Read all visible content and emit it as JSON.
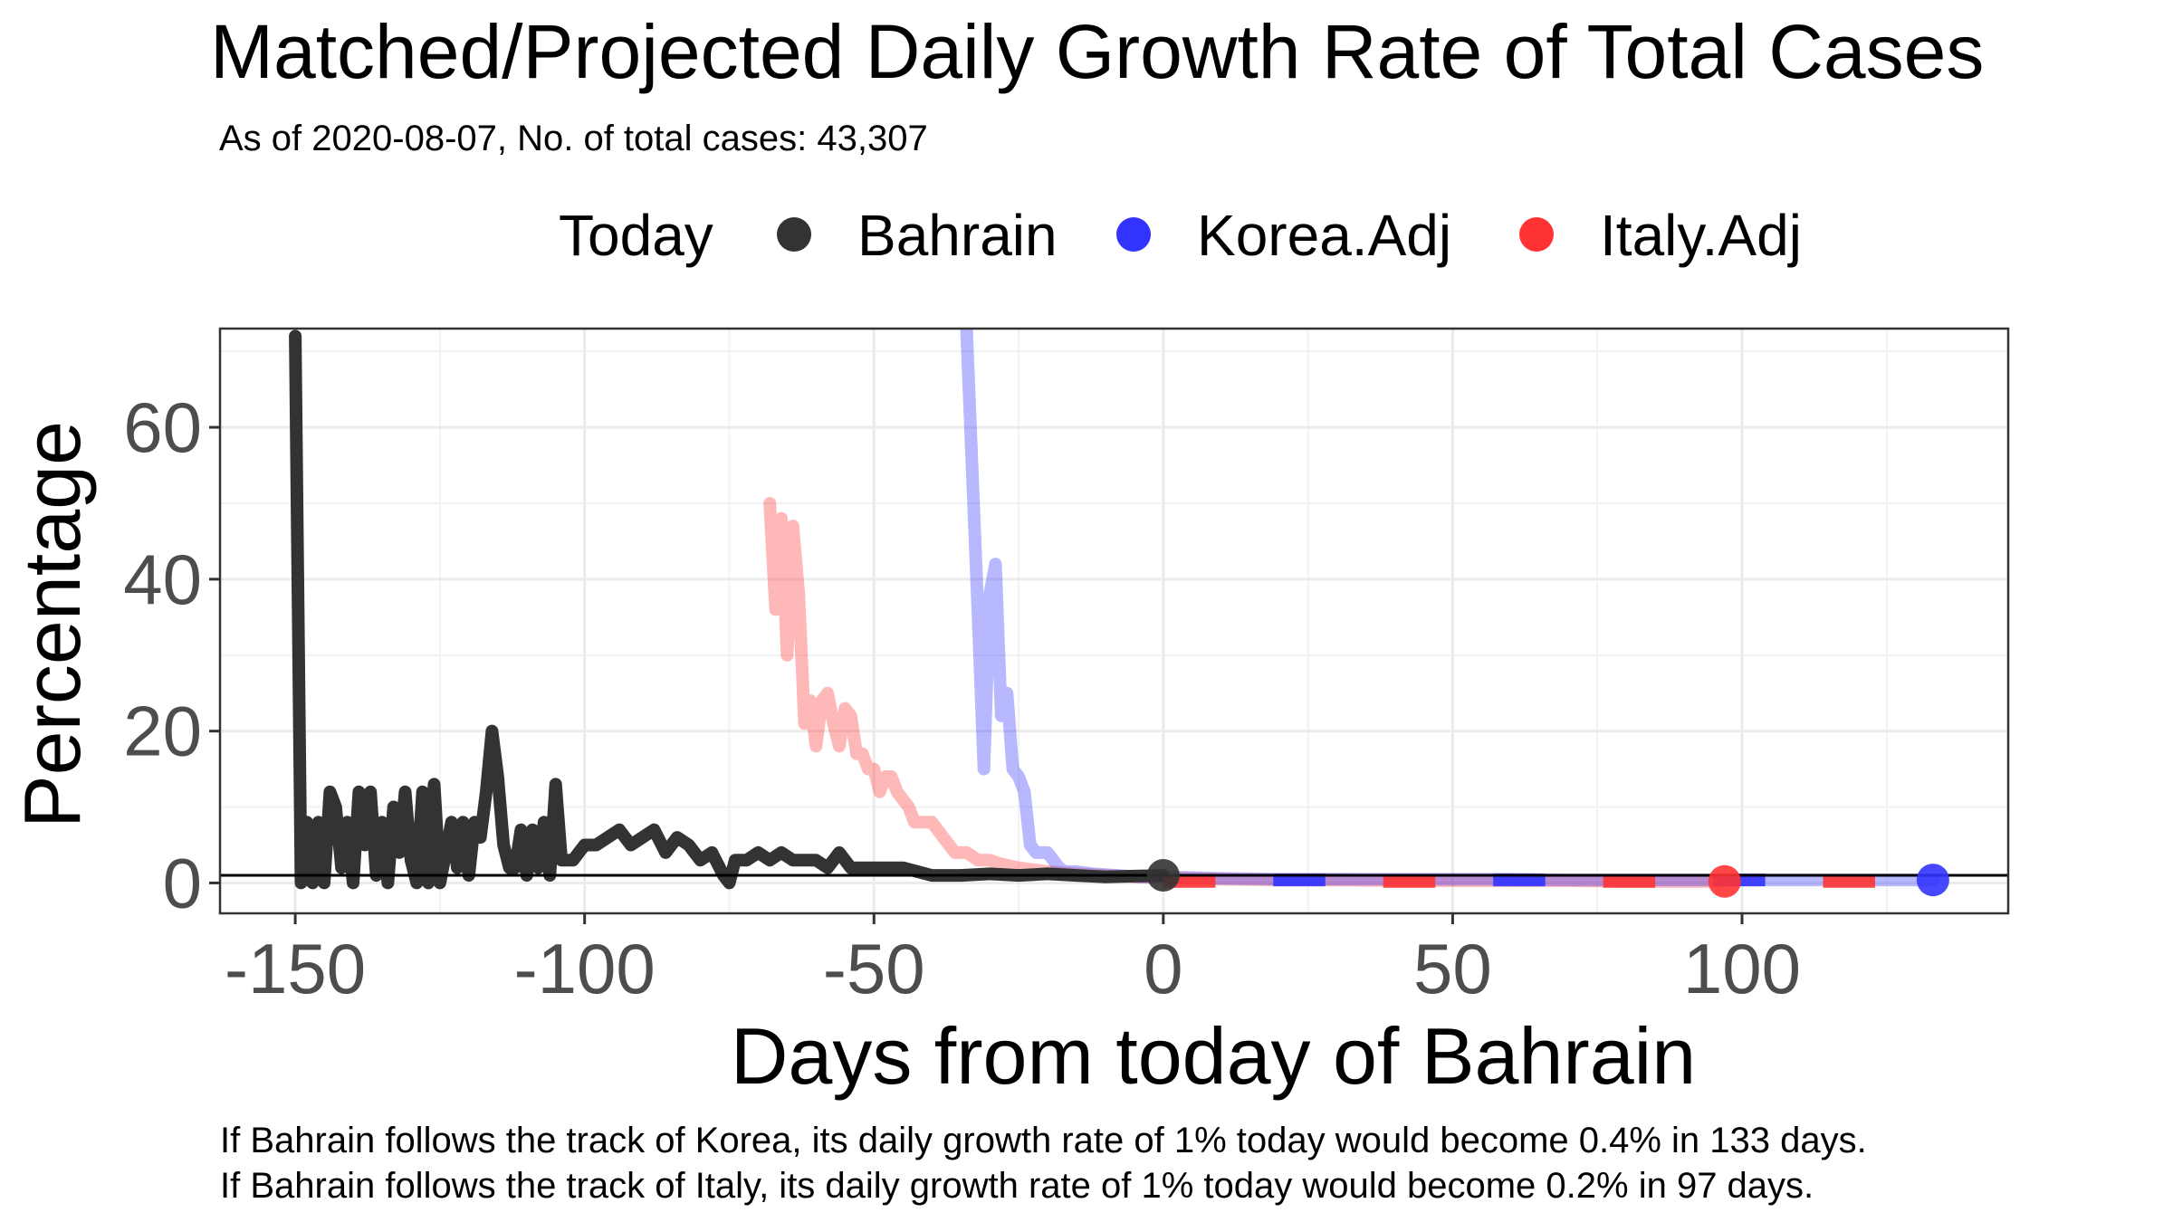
{
  "chart_data": {
    "type": "line",
    "title": "Matched/Projected Daily Growth Rate of Total Cases",
    "subtitle": "As of 2020-08-07, No. of total cases: 43,307",
    "xlabel": "Days from today of Bahrain",
    "ylabel": "Percentage",
    "xlim": [
      -163,
      146
    ],
    "ylim": [
      -4,
      73
    ],
    "x_ticks": [
      -150,
      -100,
      -50,
      0,
      50,
      100
    ],
    "x_tick_labels": [
      "-150",
      "-100",
      "-50",
      "0",
      "50",
      "100"
    ],
    "y_ticks": [
      0,
      20,
      40,
      60
    ],
    "y_tick_labels": [
      "0",
      "20",
      "40",
      "60"
    ],
    "hline_y": 1,
    "grid": true,
    "legend": {
      "position": "top",
      "title": "Today",
      "entries": [
        "Bahrain",
        "Korea.Adj",
        "Italy.Adj"
      ]
    },
    "colors": {
      "Bahrain": "#333333",
      "Korea.Adj": "#3333ff",
      "Italy.Adj": "#ff3333"
    },
    "series": [
      {
        "name": "Bahrain",
        "x": [
          -150,
          -149,
          -148,
          -147,
          -146,
          -145,
          -144,
          -143,
          -142,
          -141,
          -140,
          -139,
          -138,
          -137,
          -136,
          -135,
          -134,
          -133,
          -132,
          -131,
          -130,
          -129,
          -128,
          -127,
          -126,
          -125,
          -124,
          -123,
          -122,
          -121,
          -120,
          -119,
          -118,
          -117,
          -116,
          -115,
          -114,
          -113,
          -112,
          -111,
          -110,
          -109,
          -108,
          -107,
          -106,
          -105,
          -104,
          -103,
          -102,
          -101,
          -100,
          -98,
          -96,
          -94,
          -92,
          -90,
          -88,
          -86,
          -84,
          -82,
          -80,
          -78,
          -76,
          -75,
          -74,
          -72,
          -70,
          -68,
          -66,
          -64,
          -62,
          -60,
          -58,
          -56,
          -54,
          -52,
          -50,
          -45,
          -40,
          -35,
          -30,
          -25,
          -20,
          -15,
          -10,
          -5,
          0
        ],
        "values": [
          72,
          0,
          8,
          0,
          8,
          0,
          12,
          10,
          2,
          8,
          0,
          12,
          5,
          12,
          1,
          8,
          0,
          10,
          4,
          12,
          3,
          0,
          12,
          0,
          13,
          0,
          4,
          8,
          2,
          8,
          1,
          8,
          6,
          12,
          20,
          14,
          5,
          2,
          2,
          7,
          1,
          7,
          2,
          8,
          1,
          13,
          3,
          3,
          3,
          4,
          5,
          5,
          6,
          7,
          5,
          6,
          7,
          4,
          6,
          5,
          3,
          4,
          1,
          0,
          3,
          3,
          4,
          3,
          4,
          3,
          3,
          3,
          2,
          4,
          2,
          2,
          2,
          2,
          1,
          1,
          1.2,
          1,
          1.2,
          1,
          0.8,
          0.9,
          1.0
        ]
      },
      {
        "name": "Korea.Adj",
        "x": [
          -34,
          -33,
          -32,
          -31,
          -30,
          -29,
          -28,
          -27,
          -26,
          -25,
          -24,
          -23,
          -22,
          -21,
          -20,
          -19,
          -18,
          -17,
          -15,
          -12,
          -8,
          -4,
          0,
          10,
          20,
          30,
          40,
          50,
          60,
          70,
          80,
          90,
          100,
          110,
          120,
          133
        ],
        "values": [
          73,
          54,
          35,
          15,
          38,
          42,
          22,
          25,
          15,
          14,
          12,
          5,
          4,
          4,
          4,
          3,
          2,
          1.5,
          1.5,
          1.2,
          1,
          0.8,
          0.8,
          0.6,
          0.5,
          0.5,
          0.5,
          0.5,
          0.5,
          0.4,
          0.4,
          0.4,
          0.4,
          0.4,
          0.4,
          0.4
        ]
      },
      {
        "name": "Italy.Adj",
        "x": [
          -68,
          -67,
          -66,
          -65,
          -64,
          -63,
          -62,
          -61,
          -60,
          -59,
          -58,
          -57,
          -56,
          -55,
          -54,
          -53,
          -52,
          -51,
          -50,
          -49,
          -48,
          -47,
          -46,
          -45,
          -44,
          -43,
          -42,
          -40,
          -38,
          -36,
          -34,
          -32,
          -30,
          -28,
          -25,
          -20,
          -15,
          -10,
          -5,
          0,
          10,
          20,
          30,
          40,
          50,
          60,
          70,
          80,
          90,
          97
        ],
        "values": [
          50,
          36,
          48,
          30,
          47,
          38,
          21,
          24,
          18,
          24,
          25,
          21,
          18,
          23,
          22,
          17,
          17,
          15,
          15,
          12,
          14,
          14,
          12,
          11,
          10,
          8,
          8,
          8,
          6,
          4,
          4,
          3,
          3,
          2.5,
          2,
          1.5,
          1.2,
          1,
          0.8,
          0.7,
          0.5,
          0.4,
          0.4,
          0.3,
          0.3,
          0.3,
          0.3,
          0.2,
          0.2,
          0.2
        ]
      }
    ],
    "today_points": [
      {
        "series": "Bahrain",
        "x": 0,
        "y": 1
      },
      {
        "series": "Korea.Adj",
        "x": 133,
        "y": 0.4
      },
      {
        "series": "Italy.Adj",
        "x": 97,
        "y": 0.2
      }
    ]
  },
  "captions": [
    "If Bahrain follows the track of Korea, its daily growth rate of 1% today would become 0.4% in 133 days.",
    "If Bahrain follows the track of Italy, its daily growth rate of 1% today would become 0.2% in 97 days."
  ]
}
